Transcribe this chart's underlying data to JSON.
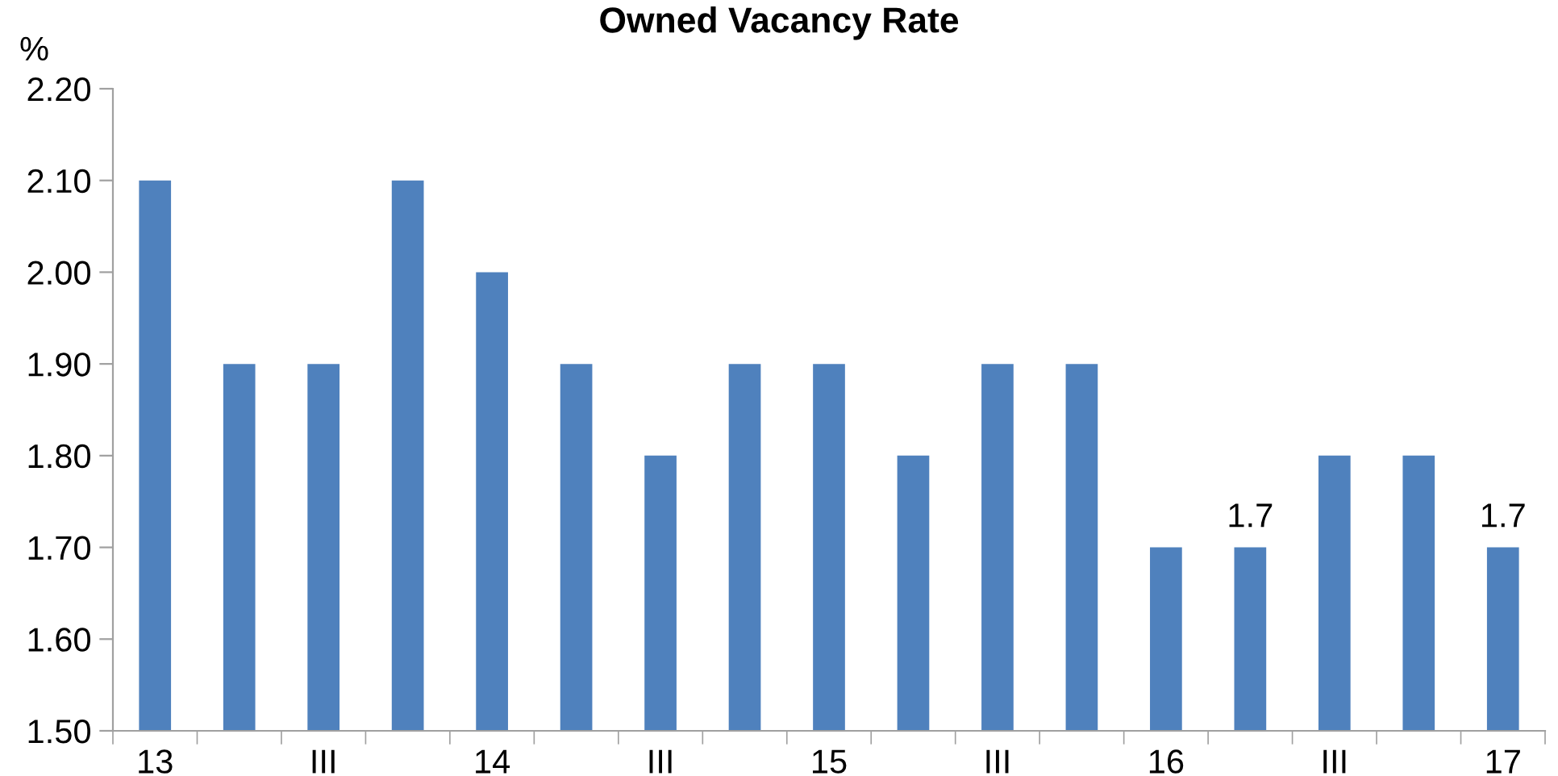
{
  "chart_data": {
    "type": "bar",
    "title": "Owned Vacancy Rate",
    "ylabel": "%",
    "categories": [
      "13",
      null,
      "III",
      null,
      "14",
      null,
      "III",
      null,
      "15",
      null,
      "III",
      null,
      "16",
      null,
      "III",
      null,
      "17"
    ],
    "values": [
      2.1,
      1.9,
      1.9,
      2.1,
      2.0,
      1.9,
      1.8,
      1.9,
      1.9,
      1.8,
      1.9,
      1.9,
      1.7,
      1.7,
      1.8,
      1.8,
      1.7
    ],
    "value_labels": [
      null,
      null,
      null,
      null,
      null,
      null,
      null,
      null,
      null,
      null,
      null,
      null,
      null,
      "1.7",
      null,
      null,
      "1.7"
    ],
    "color": "#4f81bd",
    "ylim": [
      1.5,
      2.2
    ],
    "yticks": [
      {
        "value": 1.5,
        "label": "1.50"
      },
      {
        "value": 1.6,
        "label": "1.60"
      },
      {
        "value": 1.7,
        "label": "1.70"
      },
      {
        "value": 1.8,
        "label": "1.80"
      },
      {
        "value": 1.9,
        "label": "1.90"
      },
      {
        "value": 2.0,
        "label": "2.00"
      },
      {
        "value": 2.1,
        "label": "2.10"
      },
      {
        "value": 2.2,
        "label": "2.20"
      }
    ],
    "grid": false,
    "legend": false
  }
}
